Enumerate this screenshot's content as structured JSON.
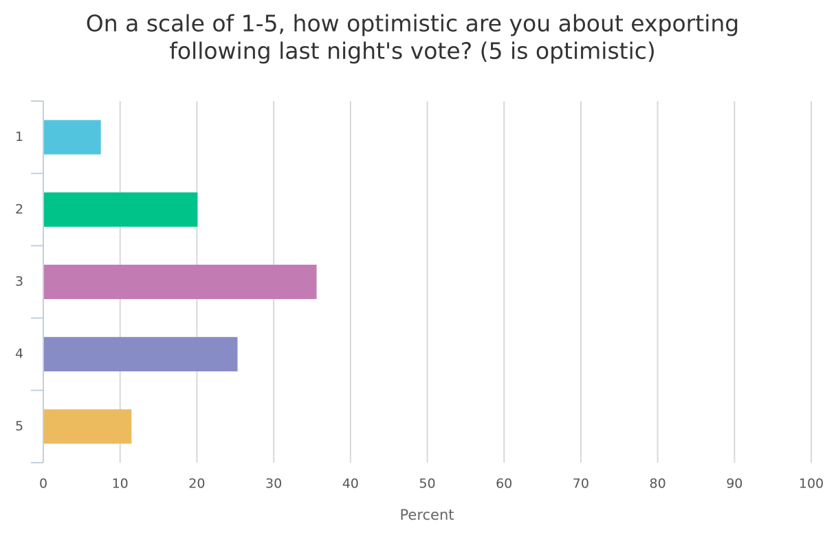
{
  "chart_data": {
    "type": "bar",
    "orientation": "horizontal",
    "title": [
      "On a scale of 1-5, how optimistic are you about exporting",
      "following last night's vote? (5 is optimistic)"
    ],
    "x_label": "Percent",
    "categories": [
      "1",
      "2",
      "3",
      "4",
      "5"
    ],
    "values": [
      7.4,
      20.0,
      35.5,
      25.2,
      11.4
    ],
    "colors": [
      "#53c4de",
      "#00c389",
      "#c37cb3",
      "#878bc6",
      "#ebbb5e"
    ],
    "xlim": [
      0,
      100
    ],
    "xticks": [
      0,
      10,
      20,
      30,
      40,
      50,
      60,
      70,
      80,
      90,
      100
    ],
    "grid": true
  }
}
